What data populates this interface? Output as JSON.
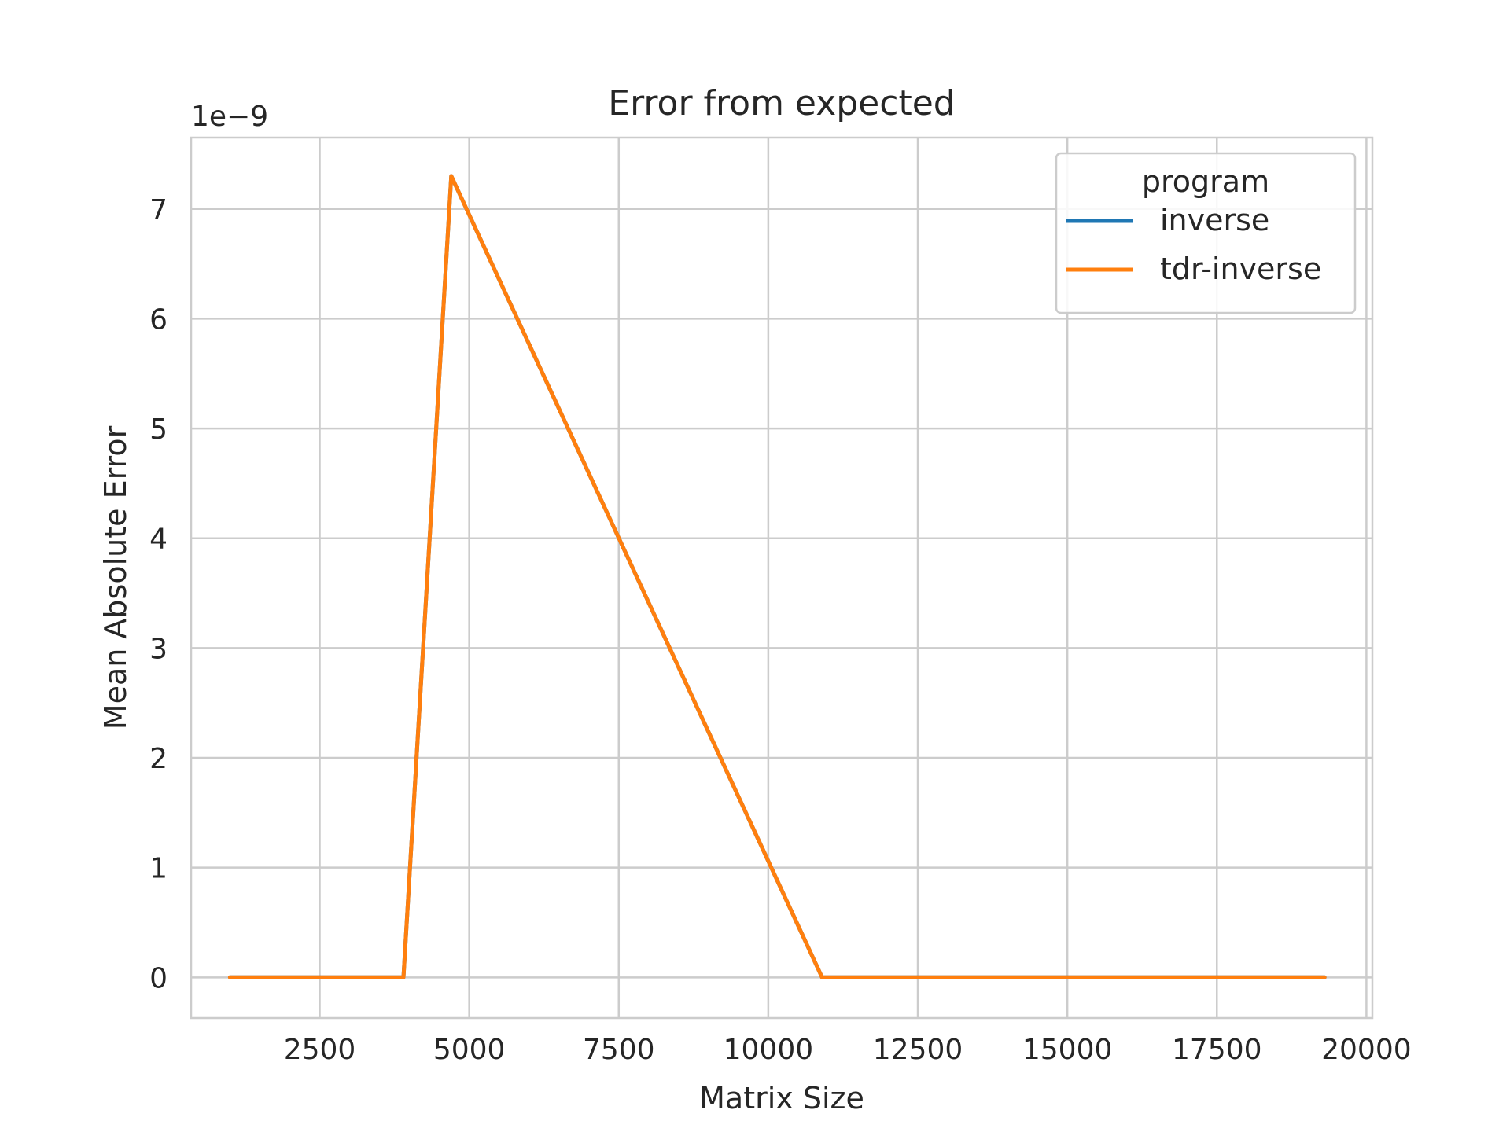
{
  "chart_data": {
    "type": "line",
    "title": "Error from expected",
    "xlabel": "Matrix Size",
    "ylabel": "Mean Absolute Error",
    "y_multiplier_label": "1e−9",
    "xlim": [
      350,
      20100
    ],
    "ylim": [
      -0.37,
      7.65
    ],
    "x_ticks": [
      2500,
      5000,
      7500,
      10000,
      12500,
      15000,
      17500,
      20000
    ],
    "y_ticks": [
      0,
      1,
      2,
      3,
      4,
      5,
      6,
      7
    ],
    "grid": true,
    "legend": {
      "title": "program",
      "placement": "top-right"
    },
    "series": [
      {
        "name": "inverse",
        "color": "#1f77b4",
        "x": [
          1000,
          3900,
          4700,
          10900,
          19300
        ],
        "y": [
          0,
          0,
          7.3,
          0,
          0
        ]
      },
      {
        "name": "tdr-inverse",
        "color": "#ff7f0e",
        "x": [
          1000,
          3900,
          4700,
          10900,
          19300
        ],
        "y": [
          0,
          0,
          7.3,
          0,
          0
        ]
      }
    ]
  }
}
